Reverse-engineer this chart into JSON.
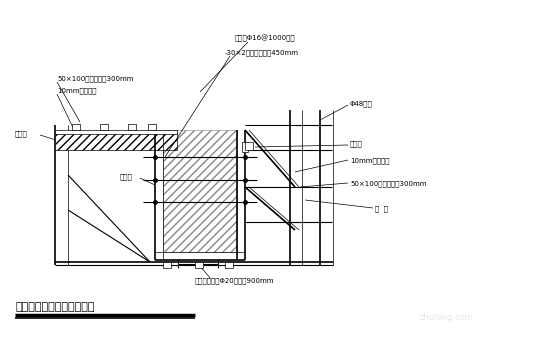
{
  "title": "框架梁、现浇板模板支撑图",
  "bg_color": "#ffffff",
  "labels": {
    "top_left_1": "50×100木枋，间距300mm",
    "top_left_2": "10mm厚复合板",
    "left_1": "现浇板",
    "left_2": "框架梁",
    "top_center_1": "梁内撑Φ16@1000钢筋",
    "top_center_2": "-30×2对拉扁铁间距450mm",
    "right_1": "Φ48钢管",
    "right_2": "阴角模",
    "right_3": "10mm厚复合板",
    "right_4": "50×100木枋，间距300mm",
    "right_5": "斜  撑",
    "bottom_center": "钢筋焊接支架Φ20，间距900mm"
  }
}
